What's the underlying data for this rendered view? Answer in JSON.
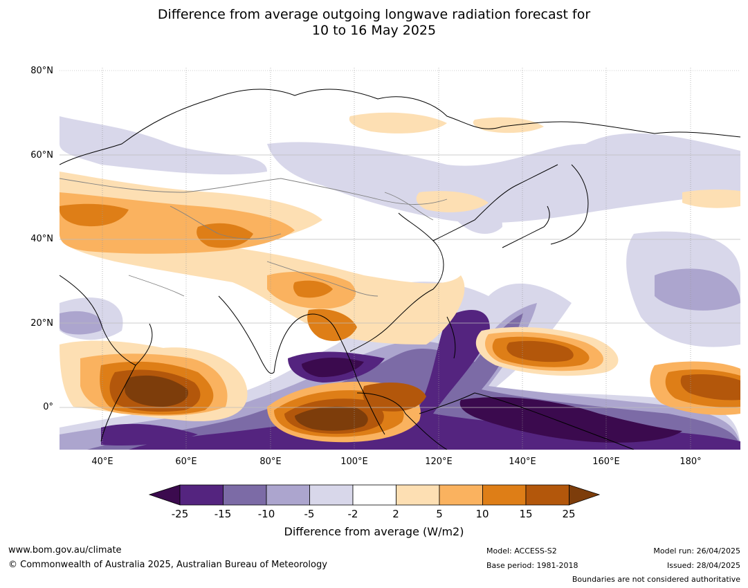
{
  "title_line1": "Difference from average outgoing longwave radiation forecast for",
  "title_line2": "10 to 16 May 2025",
  "lat_labels": [
    "80°N",
    "60°N",
    "40°N",
    "20°N",
    "0°"
  ],
  "lon_labels": [
    "40°E",
    "60°E",
    "80°E",
    "100°E",
    "120°E",
    "140°E",
    "160°E",
    "180°"
  ],
  "colorbar": {
    "ticks": [
      "-25",
      "-15",
      "-10",
      "-5",
      "-2",
      "2",
      "5",
      "10",
      "15",
      "25"
    ],
    "colors": [
      "#3b0a4e",
      "#54247f",
      "#7c6ba6",
      "#aca5ce",
      "#d8d7ea",
      "#ffffff",
      "#fddfb3",
      "#fab25f",
      "#de7e17",
      "#b3570b",
      "#7d3d0b"
    ],
    "title": "Difference from average (W/m2)"
  },
  "footer": {
    "url": "www.bom.gov.au/climate",
    "copyright": "© Commonwealth of Australia 2025, Australian Bureau of Meteorology",
    "model": "Model: ACCESS-S2",
    "base_period": "Base period: 1981-2018",
    "model_run": "Model run: 26/04/2025",
    "issued": "Issued: 28/04/2025",
    "boundaries": "Boundaries are not considered authoritative"
  }
}
